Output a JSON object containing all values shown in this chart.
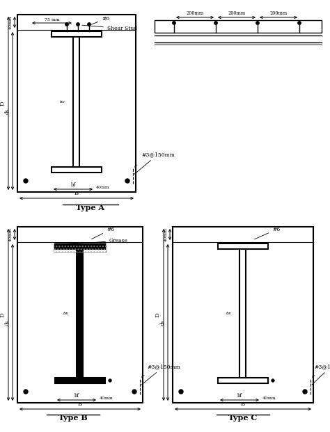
{
  "bg_color": "#ffffff",
  "line_color": "#000000",
  "title_A": "Type A",
  "title_B": "Type B",
  "title_C": "Type C",
  "label_pound6": "#6",
  "label_shear_stud": "Shear Stud",
  "label_grease": "Grease",
  "label_hash3": "#3@150mm",
  "label_40mm": "40mm",
  "label_bf": "bf",
  "label_B": "B",
  "label_D": "D",
  "label_ds": "ds",
  "label_tw": "tw",
  "label_tf": "tf",
  "label_75mm": "75 mm",
  "label_200mm": "200mm"
}
